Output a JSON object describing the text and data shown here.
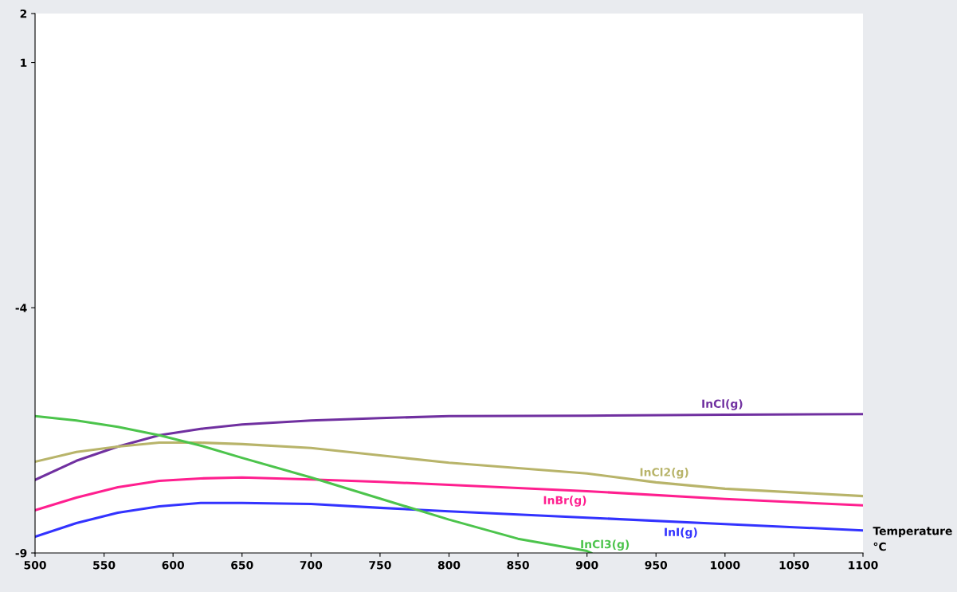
{
  "chart_data": {
    "type": "line",
    "xlabel": "Temperature\n°C",
    "xlim": [
      500,
      1100
    ],
    "ylim": [
      -9,
      2
    ],
    "xticks": [
      500,
      550,
      600,
      650,
      700,
      750,
      800,
      850,
      900,
      950,
      1000,
      1050,
      1100
    ],
    "yticks": [
      2,
      1,
      -4,
      -9
    ],
    "grid": false,
    "legend": false,
    "series": [
      {
        "name": "InCl(g)",
        "color": "#7030a0",
        "x": [
          500,
          530,
          560,
          590,
          620,
          650,
          700,
          750,
          800,
          900,
          1000,
          1100
        ],
        "values": [
          -7.51,
          -7.12,
          -6.83,
          -6.6,
          -6.47,
          -6.38,
          -6.3,
          -6.25,
          -6.21,
          -6.2,
          -6.18,
          -6.17
        ]
      },
      {
        "name": "InCl2(g)",
        "color": "#b8b46a",
        "x": [
          500,
          530,
          560,
          590,
          620,
          650,
          700,
          750,
          800,
          900,
          950,
          1000,
          1100
        ],
        "values": [
          -7.14,
          -6.94,
          -6.83,
          -6.75,
          -6.75,
          -6.78,
          -6.86,
          -7.01,
          -7.16,
          -7.38,
          -7.56,
          -7.69,
          -7.84
        ]
      },
      {
        "name": "InBr(g)",
        "color": "#ff1f8f",
        "x": [
          500,
          530,
          560,
          590,
          620,
          650,
          700,
          750,
          800,
          900,
          1000,
          1100
        ],
        "values": [
          -8.13,
          -7.87,
          -7.66,
          -7.53,
          -7.48,
          -7.46,
          -7.5,
          -7.55,
          -7.61,
          -7.74,
          -7.9,
          -8.03
        ]
      },
      {
        "name": "InI(g)",
        "color": "#3333ff",
        "x": [
          500,
          530,
          560,
          590,
          620,
          650,
          700,
          750,
          800,
          900,
          1000,
          1100
        ],
        "values": [
          -8.67,
          -8.39,
          -8.18,
          -8.05,
          -7.98,
          -7.98,
          -8.0,
          -8.08,
          -8.15,
          -8.28,
          -8.41,
          -8.54
        ]
      },
      {
        "name": "InCl3(g)",
        "color": "#4cc44c",
        "x": [
          500,
          530,
          560,
          590,
          620,
          650,
          700,
          750,
          800,
          850,
          900,
          903
        ],
        "values": [
          -6.21,
          -6.3,
          -6.43,
          -6.6,
          -6.81,
          -7.06,
          -7.46,
          -7.89,
          -8.32,
          -8.71,
          -8.96,
          -9.0
        ]
      }
    ]
  }
}
